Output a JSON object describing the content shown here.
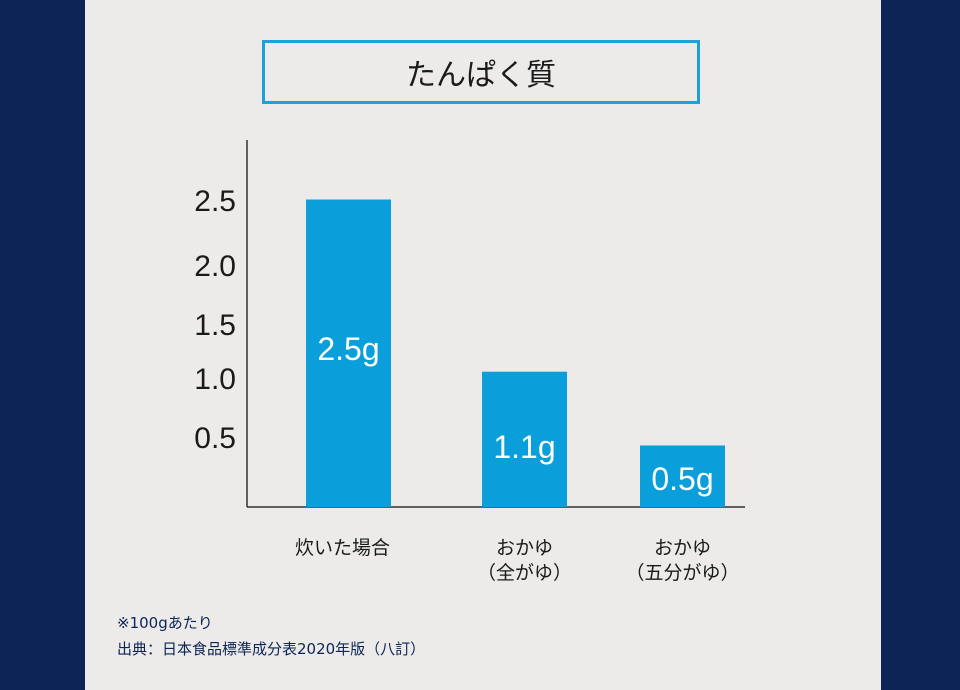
{
  "colors": {
    "bar": "#0a9fdb",
    "frame": "#0c2456",
    "title_border": "#1ea0d8"
  },
  "chart_data": {
    "type": "bar",
    "title": "たんぱく質",
    "categories": [
      [
        "炊いた場合"
      ],
      [
        "おかゆ",
        "（全がゆ）"
      ],
      [
        "おかゆ",
        "（五分がゆ）"
      ]
    ],
    "values": [
      2.5,
      1.1,
      0.5
    ],
    "data_labels": [
      "2.5g",
      "1.1g",
      "0.5g"
    ],
    "yticks": [
      "0.5",
      "1.0",
      "1.5",
      "2.0",
      "2.5"
    ],
    "ylim": [
      0,
      2.8
    ],
    "grid": false
  },
  "footnotes": {
    "per": "※100gあたり",
    "source": "出典：日本食品標準成分表2020年版（八訂）"
  }
}
